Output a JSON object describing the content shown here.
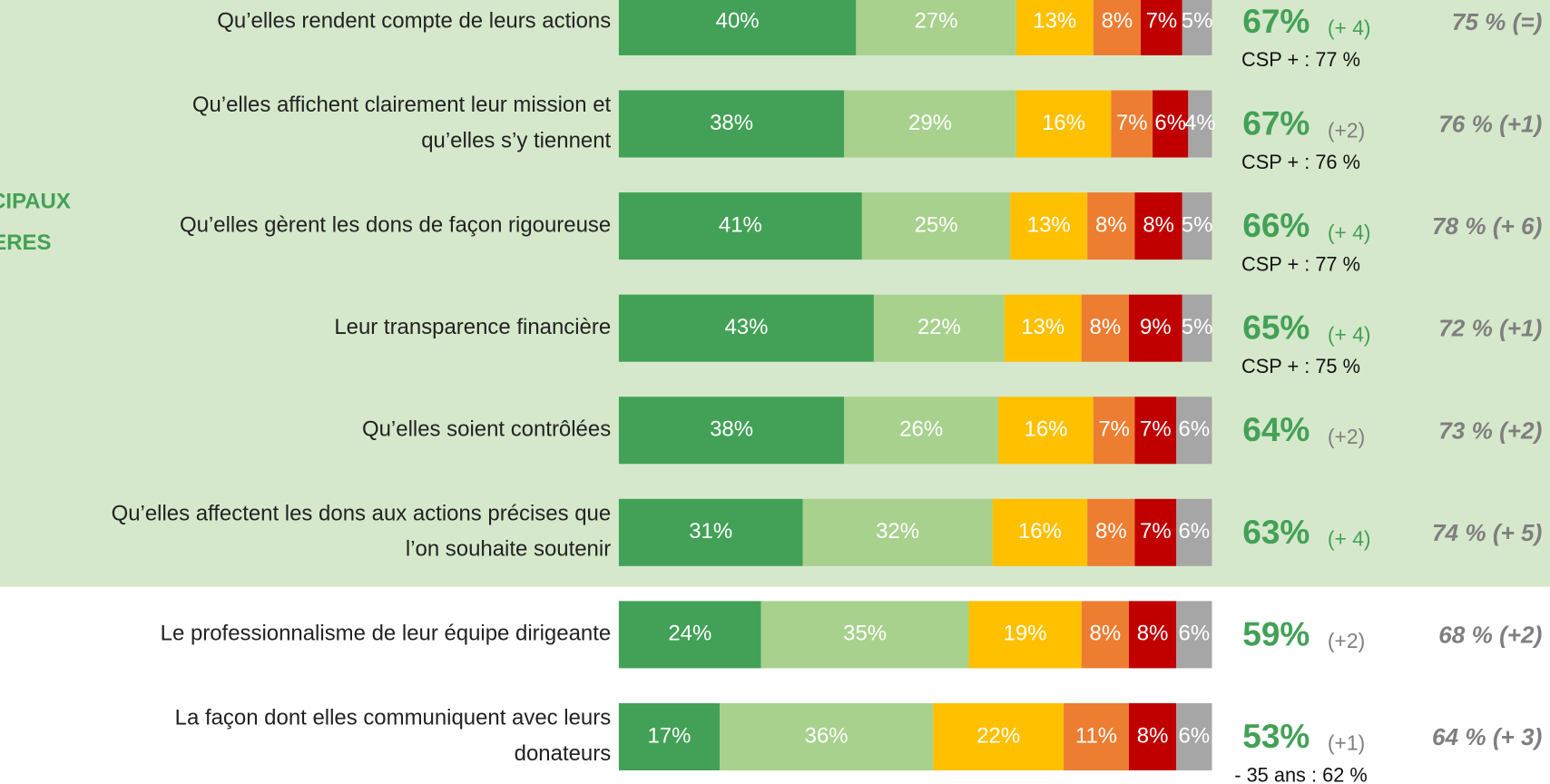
{
  "chart_data": {
    "type": "bar",
    "orientation": "horizontal",
    "stacked": true,
    "side_label": [
      "CIPAUX",
      "ERES"
    ],
    "categories": [
      [
        "Qu’elles rendent compte de leurs actions"
      ],
      [
        "Qu’elles affichent clairement leur mission et",
        "qu’elles s’y tiennent"
      ],
      [
        "Qu’elles gèrent les dons de façon rigoureuse"
      ],
      [
        "Leur transparence financière"
      ],
      [
        "Qu’elles soient contrôlées"
      ],
      [
        "Qu’elles affectent les dons aux actions précises que",
        "l’on souhaite soutenir"
      ],
      [
        "Le professionnalisme de leur équipe dirigeante"
      ],
      [
        "La façon dont elles communiquent avec leurs",
        "donateurs"
      ]
    ],
    "series": [
      {
        "color": "#43a157",
        "values": [
          40,
          38,
          41,
          43,
          38,
          31,
          24,
          17
        ],
        "value_labels": [
          "40%",
          "38%",
          "41%",
          "43%",
          "38%",
          "31%",
          "24%",
          "17%"
        ]
      },
      {
        "color": "#a8d18d",
        "values": [
          27,
          29,
          25,
          22,
          26,
          32,
          35,
          36
        ],
        "value_labels": [
          "27%",
          "29%",
          "25%",
          "22%",
          "26%",
          "32%",
          "35%",
          "36%"
        ]
      },
      {
        "color": "#ffc000",
        "values": [
          13,
          16,
          13,
          13,
          16,
          16,
          19,
          22
        ],
        "value_labels": [
          "13%",
          "16%",
          "13%",
          "13%",
          "16%",
          "16%",
          "19%",
          "22%"
        ]
      },
      {
        "color": "#ed7d31",
        "values": [
          8,
          7,
          8,
          8,
          7,
          8,
          8,
          11
        ],
        "value_labels": [
          "8%",
          "7%",
          "8%",
          "8%",
          "7%",
          "8%",
          "8%",
          "11%"
        ]
      },
      {
        "color": "#c00000",
        "values": [
          7,
          6,
          8,
          9,
          7,
          7,
          8,
          8
        ],
        "value_labels": [
          "7%",
          "6%",
          "8%",
          "9%",
          "7%",
          "7%",
          "8%",
          "8%"
        ]
      },
      {
        "color": "#a6a6a6",
        "values": [
          5,
          4,
          5,
          5,
          6,
          6,
          6,
          6
        ],
        "value_labels": [
          "5%",
          "4%",
          "5%",
          "5%",
          "6%",
          "6%",
          "6%",
          "6%"
        ]
      }
    ],
    "totals": {
      "values": [
        67,
        67,
        66,
        65,
        64,
        63,
        59,
        53
      ],
      "value_labels": [
        "67%",
        "67%",
        "66%",
        "65%",
        "64%",
        "63%",
        "59%",
        "53%"
      ],
      "color": "#43a157"
    },
    "changes": {
      "values": [
        4,
        2,
        4,
        4,
        2,
        4,
        2,
        1
      ],
      "value_labels": [
        "(+ 4)",
        "(+2)",
        "(+ 4)",
        "(+ 4)",
        "(+2)",
        "(+ 4)",
        "(+2)",
        "(+1)"
      ],
      "colors": [
        "#43a157",
        "#7f7f7f",
        "#43a157",
        "#43a157",
        "#7f7f7f",
        "#43a157",
        "#7f7f7f",
        "#7f7f7f"
      ]
    },
    "notes": [
      "CSP + : 77 %",
      "CSP + : 76 %",
      "CSP + : 77 %",
      "CSP + : 75 %",
      null,
      null,
      null,
      "- 35 ans : 62 %"
    ],
    "previous": [
      "75 %  (=)",
      "76 % (+1)",
      "78 % (+ 6)",
      "72 % (+1)",
      "73 % (+2)",
      "74 % (+ 5)",
      "68 % (+2)",
      "64 % (+ 3)"
    ],
    "highlight_rows": 6
  }
}
